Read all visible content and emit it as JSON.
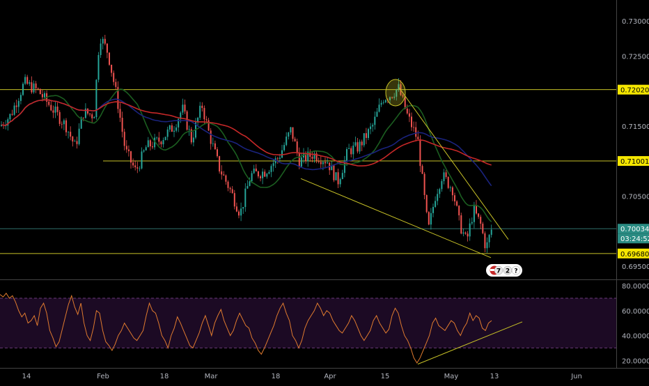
{
  "chart_data": [
    {
      "type": "candlestick",
      "title": "",
      "y_ticks": [
        "0.73000",
        "0.72500",
        "0.71500",
        "0.70500",
        "0.69500"
      ],
      "ylim": [
        0.6932,
        0.733
      ],
      "x_ticks": [
        "14",
        "Feb",
        "18",
        "Mar",
        "18",
        "Apr",
        "15",
        "May",
        "13",
        "Jun"
      ],
      "grid": false,
      "price_markers": [
        {
          "label": "0.72020",
          "value": 0.7202,
          "style": "line-highlight"
        },
        {
          "label": "0.71001",
          "value": 0.71001,
          "style": "line-highlight"
        },
        {
          "label": "0.70034",
          "value": 0.70034,
          "style": "current"
        },
        {
          "label": "0.69680",
          "value": 0.6968,
          "style": "line-highlight"
        }
      ],
      "countdown": "03:24:52",
      "events": [
        "7",
        "2",
        "?"
      ],
      "colors": {
        "up": "#26a69a",
        "down": "#ef5350",
        "level": "#c8c227",
        "ma_red": "#c62828",
        "ma_blue": "#1a237e",
        "ma_green": "#1b5e20"
      }
    },
    {
      "type": "line",
      "series": [
        {
          "values": [
            73,
            71,
            74,
            70,
            72,
            67,
            60,
            55,
            58,
            50,
            52,
            56,
            48,
            62,
            66,
            58,
            44,
            38,
            31,
            35,
            45,
            55,
            65,
            72,
            63,
            57,
            66,
            50,
            40,
            36,
            46,
            60,
            58,
            44,
            35,
            32,
            28,
            33,
            40,
            44,
            50,
            46,
            42,
            38,
            36,
            40,
            44,
            56,
            66,
            60,
            58,
            50,
            40,
            36,
            30,
            40,
            46,
            55,
            50,
            44,
            38,
            32,
            30,
            36,
            42,
            50,
            56,
            48,
            40,
            50,
            56,
            61,
            52,
            46,
            40,
            44,
            52,
            58,
            53,
            48,
            46,
            38,
            34,
            28,
            25,
            30,
            36,
            42,
            48,
            56,
            62,
            66,
            58,
            52,
            40,
            36,
            30,
            36,
            46,
            52,
            56,
            60,
            66,
            62,
            56,
            60,
            58,
            52,
            48,
            44,
            42,
            46,
            50,
            56,
            52,
            46,
            40,
            36,
            40,
            44,
            52,
            56,
            50,
            46,
            42,
            45,
            56,
            62,
            58,
            48,
            40,
            36,
            30,
            22,
            18,
            22,
            28,
            34,
            40,
            50,
            54,
            48,
            46,
            44,
            48,
            52,
            50,
            44,
            40,
            46,
            50,
            58,
            52,
            56,
            54,
            46,
            44,
            50,
            52
          ]
        }
      ],
      "y_ticks": [
        "80.0000",
        "60.0000",
        "40.0000",
        "20.0000"
      ],
      "ylim": [
        14,
        84
      ],
      "bands": [
        70,
        30
      ]
    }
  ]
}
